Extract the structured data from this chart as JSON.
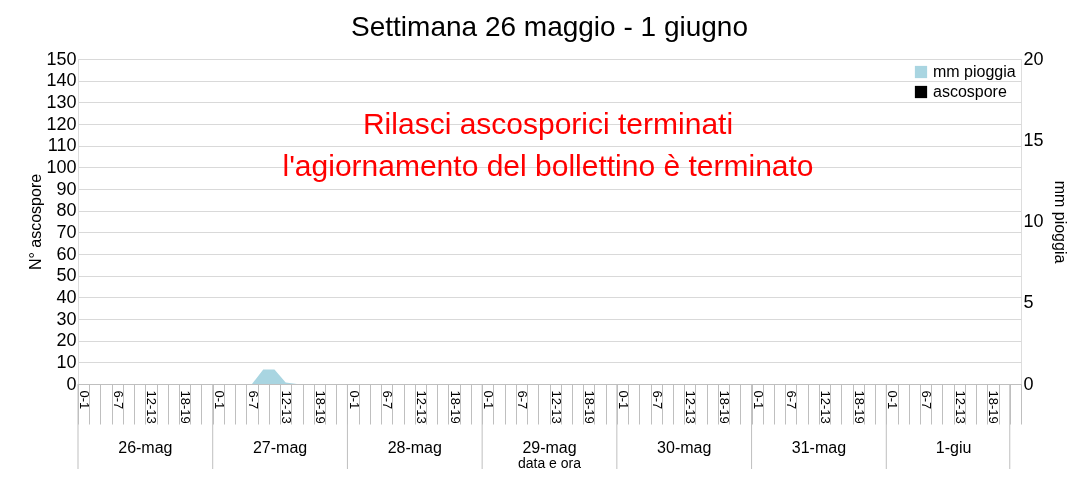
{
  "chart_data": {
    "type": "bar",
    "title": "Settimana 26 maggio - 1 giugno",
    "xlabel": "data e ora",
    "ylabel": "N° ascospore",
    "y2label": "mm pioggia",
    "categories": [
      "0-1",
      null,
      null,
      "6-7",
      null,
      null,
      "12-13",
      null,
      null,
      "18-19",
      null,
      null,
      "0-1",
      null,
      null,
      "6-7",
      null,
      null,
      "12-13",
      null,
      null,
      "18-19",
      null,
      null,
      "0-1",
      null,
      null,
      "6-7",
      null,
      null,
      "12-13",
      null,
      null,
      "18-19",
      null,
      null,
      "0-1",
      null,
      null,
      "6-7",
      null,
      null,
      "12-13",
      null,
      null,
      "18-19",
      null,
      null,
      "0-1",
      null,
      null,
      "6-7",
      null,
      null,
      "12-13",
      null,
      null,
      "18-19",
      null,
      null,
      "0-1",
      null,
      null,
      "6-7",
      null,
      null,
      "12-13",
      null,
      null,
      "18-19",
      null,
      null,
      "0-1",
      null,
      null,
      "6-7",
      null,
      null,
      "12-13",
      null,
      null,
      "18-19",
      null,
      null
    ],
    "series": [
      {
        "name": "mm pioggia",
        "type": "area",
        "axis": "y2",
        "color": "#a9d5e1",
        "values": [
          0,
          0,
          0,
          0,
          0,
          0,
          0,
          0,
          0,
          0,
          0,
          0,
          0,
          0,
          0,
          0,
          0.9,
          0.9,
          0.1,
          0,
          0,
          0,
          0,
          0,
          0,
          0,
          0,
          0,
          0,
          0,
          0,
          0,
          0,
          0,
          0,
          0,
          0,
          0,
          0,
          0,
          0,
          0,
          0,
          0,
          0,
          0,
          0,
          0,
          0,
          0,
          0,
          0,
          0,
          0,
          0,
          0,
          0,
          0,
          0,
          0,
          0,
          0,
          0,
          0,
          0,
          0,
          0,
          0,
          0,
          0,
          0,
          0,
          0,
          0,
          0,
          0,
          0,
          0,
          0,
          0,
          0,
          0,
          0,
          0
        ]
      },
      {
        "name": "ascospore",
        "color": "#000000",
        "values": [
          0,
          0,
          0,
          0,
          0,
          0,
          0,
          0,
          0,
          0,
          0,
          0,
          0,
          0,
          0,
          0,
          0,
          0,
          0,
          0,
          0,
          0,
          0,
          0,
          0,
          0,
          0,
          0,
          0,
          0,
          0,
          0,
          0,
          0,
          0,
          0,
          0,
          0,
          0,
          0,
          0,
          0,
          0,
          0,
          0,
          0,
          0,
          0,
          0,
          0,
          0,
          0,
          0,
          0,
          0,
          0,
          0,
          0,
          0,
          0,
          0,
          0,
          0,
          0,
          0,
          0,
          0,
          0,
          0,
          0,
          0,
          0,
          0,
          0,
          0,
          0,
          0,
          0,
          0,
          0,
          0,
          0,
          0,
          0
        ]
      }
    ],
    "annotations": [
      "Rilasci ascosporici terminati",
      "l'agiornamento del bollettino è terminato",
      "26-mag",
      "27-mag",
      "28-mag",
      "29-mag",
      "30-mag",
      "31-mag",
      "1-giu"
    ],
    "ylim": [
      0,
      150
    ],
    "yticks": [
      0,
      10,
      20,
      30,
      40,
      50,
      60,
      70,
      80,
      90,
      100,
      110,
      120,
      130,
      140,
      150
    ],
    "y2lim": [
      0,
      20
    ],
    "y2ticks": [
      0,
      5,
      10,
      15,
      20
    ],
    "grid": "y",
    "legend": "top right"
  }
}
